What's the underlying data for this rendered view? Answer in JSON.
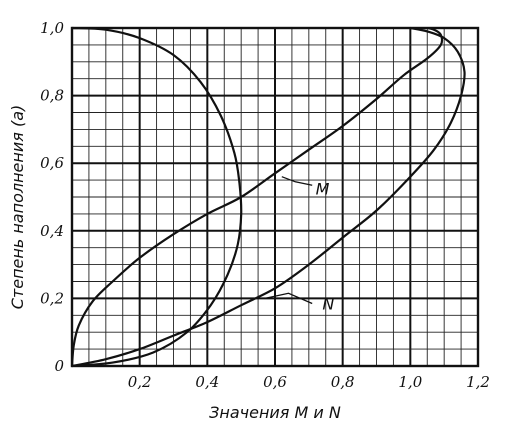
{
  "chart_data": {
    "type": "line",
    "title": "",
    "xlabel": "Значения  M и N",
    "ylabel": "Степень наполнения  (a)",
    "xlim": [
      0,
      1.2
    ],
    "ylim": [
      0,
      1.0
    ],
    "grid": true,
    "x_ticks": [
      "0,2",
      "0,4",
      "0,6",
      "0,8",
      "1,0",
      "1,2"
    ],
    "y_ticks": [
      "0",
      "0,2",
      "0,4",
      "0,6",
      "0,8",
      "1,0"
    ],
    "series": [
      {
        "name": "M",
        "points": [
          [
            0.0,
            0.0
          ],
          [
            0.005,
            0.06
          ],
          [
            0.02,
            0.12
          ],
          [
            0.06,
            0.19
          ],
          [
            0.12,
            0.25
          ],
          [
            0.2,
            0.32
          ],
          [
            0.3,
            0.39
          ],
          [
            0.4,
            0.45
          ],
          [
            0.5,
            0.5
          ],
          [
            0.6,
            0.57
          ],
          [
            0.7,
            0.64
          ],
          [
            0.8,
            0.71
          ],
          [
            0.9,
            0.79
          ],
          [
            0.98,
            0.86
          ],
          [
            1.05,
            0.91
          ],
          [
            1.09,
            0.95
          ],
          [
            1.09,
            0.98
          ],
          [
            1.07,
            0.995
          ],
          [
            1.05,
            1.0
          ]
        ]
      },
      {
        "name": "N",
        "points": [
          [
            0.0,
            0.0
          ],
          [
            0.1,
            0.02
          ],
          [
            0.2,
            0.05
          ],
          [
            0.3,
            0.09
          ],
          [
            0.4,
            0.13
          ],
          [
            0.5,
            0.18
          ],
          [
            0.6,
            0.23
          ],
          [
            0.7,
            0.3
          ],
          [
            0.8,
            0.38
          ],
          [
            0.9,
            0.46
          ],
          [
            1.0,
            0.56
          ],
          [
            1.07,
            0.64
          ],
          [
            1.12,
            0.72
          ],
          [
            1.15,
            0.8
          ],
          [
            1.16,
            0.87
          ],
          [
            1.14,
            0.93
          ],
          [
            1.1,
            0.97
          ],
          [
            1.05,
            0.99
          ],
          [
            1.0,
            1.0
          ]
        ]
      },
      {
        "name": "",
        "points": [
          [
            0.0,
            1.0
          ],
          [
            0.1,
            0.995
          ],
          [
            0.2,
            0.97
          ],
          [
            0.3,
            0.92
          ],
          [
            0.38,
            0.84
          ],
          [
            0.44,
            0.74
          ],
          [
            0.48,
            0.63
          ],
          [
            0.495,
            0.54
          ],
          [
            0.5,
            0.45
          ],
          [
            0.49,
            0.36
          ],
          [
            0.46,
            0.27
          ],
          [
            0.41,
            0.18
          ],
          [
            0.34,
            0.1
          ],
          [
            0.24,
            0.04
          ],
          [
            0.12,
            0.01
          ],
          [
            0.0,
            0.0
          ]
        ]
      }
    ],
    "labels": [
      {
        "text": "M",
        "x": 0.72,
        "y": 0.525
      },
      {
        "text": "N",
        "x": 0.74,
        "y": 0.185
      }
    ]
  }
}
